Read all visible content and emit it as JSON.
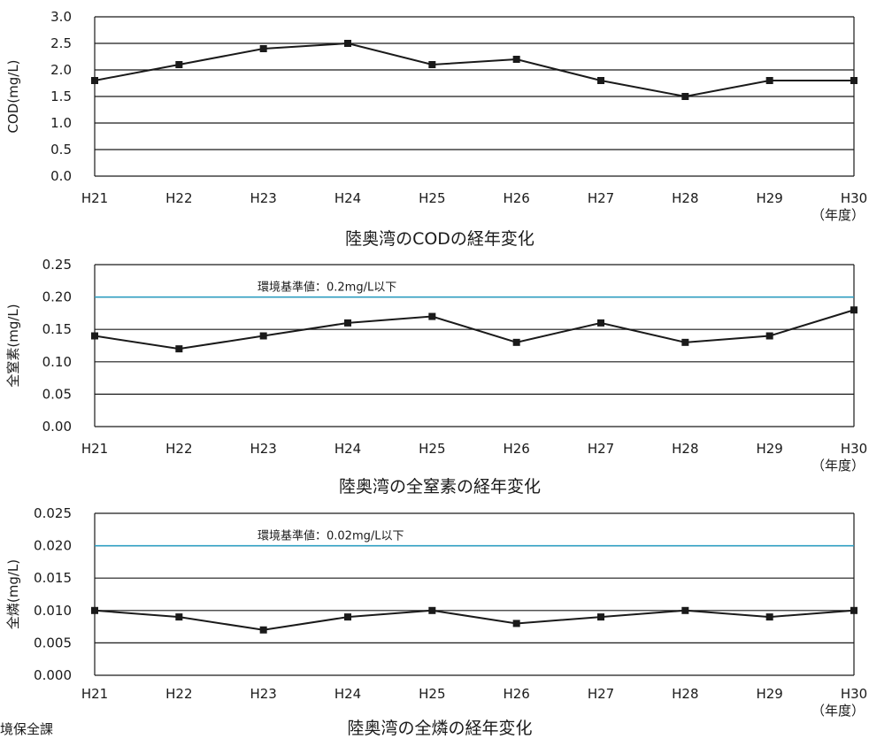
{
  "footer": {
    "credit": "境保全課"
  },
  "chart_data": [
    {
      "type": "line",
      "title": "陸奥湾のCODの経年変化",
      "xlabel": "（年度）",
      "ylabel": "COD(mg/L)",
      "categories": [
        "H21",
        "H22",
        "H23",
        "H24",
        "H25",
        "H26",
        "H27",
        "H28",
        "H29",
        "H30"
      ],
      "series": [
        {
          "values": [
            1.8,
            2.1,
            2.4,
            2.5,
            2.1,
            2.2,
            1.8,
            1.5,
            1.8,
            1.8
          ]
        }
      ],
      "ylim": [
        0,
        3.0
      ],
      "yticks": [
        "0.0",
        "0.5",
        "1.0",
        "1.5",
        "2.0",
        "2.5",
        "3.0"
      ],
      "grid": true,
      "line_color": "#1a1a1a"
    },
    {
      "type": "line",
      "title": "陸奥湾の全窒素の経年変化",
      "xlabel": "（年度）",
      "ylabel": "全窒素(mg/L)",
      "categories": [
        "H21",
        "H22",
        "H23",
        "H24",
        "H25",
        "H26",
        "H27",
        "H28",
        "H29",
        "H30"
      ],
      "series": [
        {
          "values": [
            0.14,
            0.12,
            0.14,
            0.16,
            0.17,
            0.13,
            0.16,
            0.13,
            0.14,
            0.18
          ]
        }
      ],
      "ylim": [
        0,
        0.25
      ],
      "yticks": [
        "0.00",
        "0.05",
        "0.10",
        "0.15",
        "0.20",
        "0.25"
      ],
      "grid": true,
      "line_color": "#1a1a1a",
      "reference_line": {
        "value": 0.2,
        "label": "環境基準値：0.2mg/L以下",
        "color": "#2a9fc4"
      }
    },
    {
      "type": "line",
      "title": "陸奥湾の全燐の経年変化",
      "xlabel": "（年度）",
      "ylabel": "全燐(mg/L)",
      "categories": [
        "H21",
        "H22",
        "H23",
        "H24",
        "H25",
        "H26",
        "H27",
        "H28",
        "H29",
        "H30"
      ],
      "series": [
        {
          "values": [
            0.01,
            0.009,
            0.007,
            0.009,
            0.01,
            0.008,
            0.009,
            0.01,
            0.009,
            0.01
          ]
        }
      ],
      "ylim": [
        0,
        0.025
      ],
      "yticks": [
        "0.000",
        "0.005",
        "0.010",
        "0.015",
        "0.020",
        "0.025"
      ],
      "grid": true,
      "line_color": "#1a1a1a",
      "reference_line": {
        "value": 0.02,
        "label": "環境基準値：0.02mg/L以下",
        "color": "#2a9fc4"
      }
    }
  ]
}
